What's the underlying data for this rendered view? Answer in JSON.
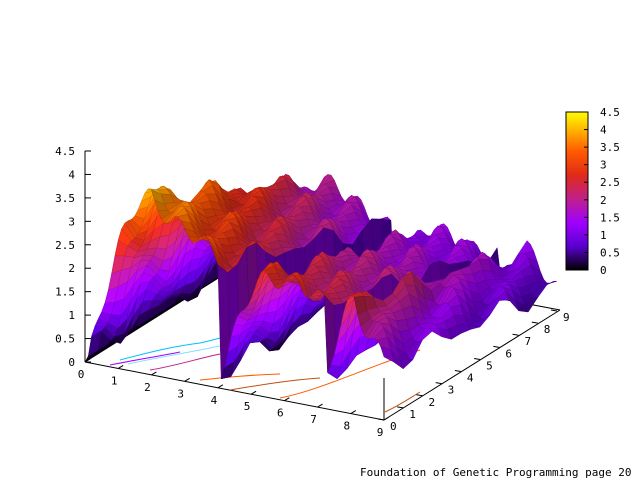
{
  "chart_data": {
    "type": "surface3d",
    "title": "",
    "xlabel": "",
    "ylabel": "",
    "zlabel": "",
    "x_ticks": [
      "0",
      "1",
      "2",
      "3",
      "4",
      "5",
      "6",
      "7",
      "8",
      "9"
    ],
    "y_ticks": [
      "0",
      "1",
      "2",
      "3",
      "4",
      "5",
      "6",
      "7",
      "8",
      "9"
    ],
    "z_ticks": [
      "0",
      "0.5",
      "1",
      "1.5",
      "2",
      "2.5",
      "3",
      "3.5",
      "4",
      "4.5"
    ],
    "colorbar_ticks": [
      "0",
      "0.5",
      "1",
      "1.5",
      "2",
      "2.5",
      "3",
      "3.5",
      "4",
      "4.5"
    ],
    "xlim": [
      0,
      9
    ],
    "ylim": [
      0,
      9
    ],
    "zlim": [
      0,
      4.5
    ],
    "cb_range": [
      0,
      4.5
    ],
    "colormap": [
      "#000000",
      "#5a00d0",
      "#a000ff",
      "#c0208a",
      "#e02a18",
      "#ff5a00",
      "#ffb000",
      "#ffff00"
    ],
    "base_contours": true,
    "colorbar_placement": "right",
    "ridges": [
      {
        "x_start": 0,
        "x_end": 4,
        "peak_x": 2.0,
        "peak_z": 3.9,
        "end_z": 2.7
      },
      {
        "x_start": 3.9,
        "x_end": 7.2,
        "peak_x": 5.4,
        "peak_z": 2.6,
        "end_z": 2.3
      },
      {
        "x_start": 7.0,
        "x_end": 9.0,
        "peak_x": 8.1,
        "peak_z": 2.5,
        "end_z": 1.2
      }
    ]
  },
  "footer": {
    "caption": "Foundation of Genetic Programming page 20"
  }
}
